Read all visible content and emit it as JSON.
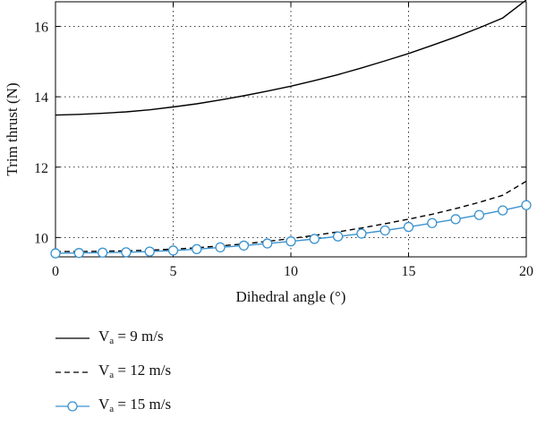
{
  "chart_data": {
    "type": "line",
    "xlabel": "Dihedral angle (°)",
    "ylabel": "Trim thrust (N)",
    "xlim": [
      0,
      20
    ],
    "ylim": [
      9.45,
      16.7
    ],
    "xticks": [
      0,
      5,
      10,
      15,
      20
    ],
    "yticks": [
      10,
      12,
      14,
      16
    ],
    "grid": true,
    "legend_position": "below",
    "x": [
      0,
      1,
      2,
      3,
      4,
      5,
      6,
      7,
      8,
      9,
      10,
      11,
      12,
      13,
      14,
      15,
      16,
      17,
      18,
      19,
      20
    ],
    "series": [
      {
        "name_prefix": "V",
        "name_sub": "a",
        "name_suffix": " = 9 m/s",
        "style": "solid",
        "color": "#000000",
        "marker": "none",
        "values": [
          13.48,
          13.5,
          13.53,
          13.57,
          13.63,
          13.71,
          13.8,
          13.91,
          14.03,
          14.16,
          14.3,
          14.46,
          14.63,
          14.82,
          15.02,
          15.23,
          15.46,
          15.7,
          15.96,
          16.24,
          16.75
        ]
      },
      {
        "name_prefix": "V",
        "name_sub": "a",
        "name_suffix": " = 12 m/s",
        "style": "dashed",
        "color": "#000000",
        "marker": "none",
        "values": [
          9.6,
          9.6,
          9.61,
          9.62,
          9.64,
          9.67,
          9.71,
          9.76,
          9.82,
          9.89,
          9.97,
          10.06,
          10.16,
          10.27,
          10.39,
          10.52,
          10.66,
          10.82,
          11.0,
          11.2,
          11.6
        ]
      },
      {
        "name_prefix": "V",
        "name_sub": "a",
        "name_suffix": " = 15 m/s",
        "style": "solid",
        "color": "#3a93cf",
        "marker": "circle",
        "values": [
          9.55,
          9.56,
          9.57,
          9.58,
          9.6,
          9.63,
          9.67,
          9.72,
          9.77,
          9.83,
          9.89,
          9.96,
          10.03,
          10.11,
          10.2,
          10.3,
          10.41,
          10.52,
          10.64,
          10.77,
          10.92
        ]
      }
    ]
  }
}
